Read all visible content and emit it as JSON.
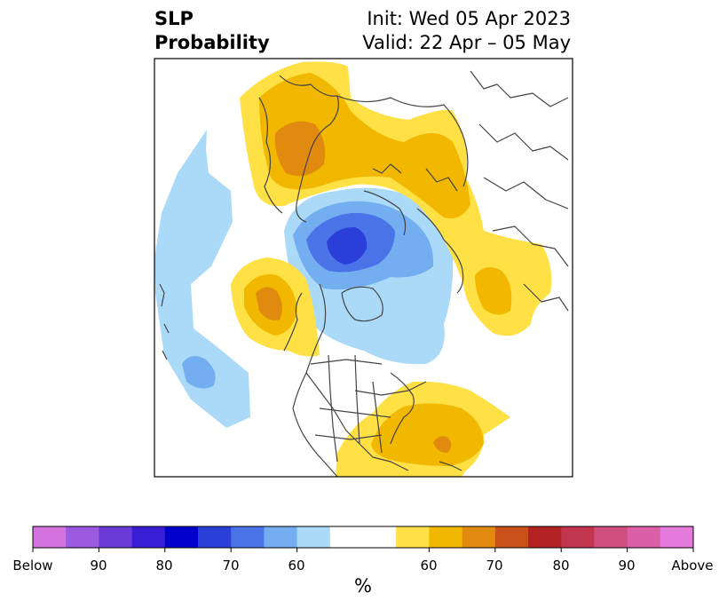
{
  "title": {
    "left_line1": "SLP",
    "left_line2": "Probability",
    "init": "Init: Wed 05 Apr 2023",
    "valid": "Valid: 22 Apr – 05 May"
  },
  "colorbar": {
    "units": "%",
    "colors": [
      "#d473e0",
      "#9b5ae0",
      "#6b3bd8",
      "#3a1ed6",
      "#0000cc",
      "#2a3fd8",
      "#4a73e8",
      "#73aef0",
      "#aadaf8",
      "#ffffff",
      "#ffffff",
      "#ffe045",
      "#f2b800",
      "#e08a10",
      "#c8521a",
      "#b22222",
      "#c2354e",
      "#cf4f7e",
      "#dc60a8",
      "#e47adc"
    ],
    "labels": [
      "Below",
      "90",
      "80",
      "70",
      "60",
      "60",
      "70",
      "80",
      "90",
      "Above"
    ]
  },
  "fields": {
    "colors": {
      "light_blue": "#aadaf8",
      "mid_blue": "#73aef0",
      "blue": "#4a73e8",
      "deep_blue": "#2a3fd8",
      "yellow": "#ffe045",
      "gold": "#f2b800",
      "orange": "#e08a10",
      "dark_orange": "#c8521a",
      "coastline": "#444444"
    }
  }
}
